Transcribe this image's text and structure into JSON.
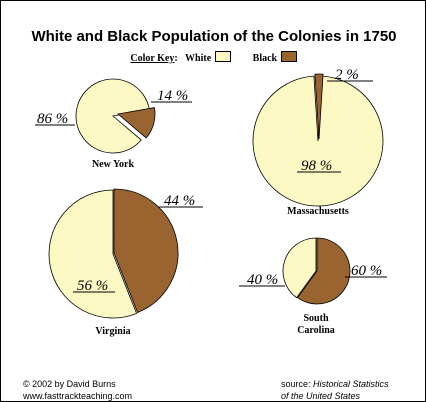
{
  "chart_data": {
    "type": "pie",
    "title": "White and Black Population of the Colonies in 1750",
    "legend": {
      "label": "Color Key",
      "items": [
        {
          "name": "White",
          "color": "#fbf8c4"
        },
        {
          "name": "Black",
          "color": "#9a6431"
        }
      ]
    },
    "charts": [
      {
        "name": "New York",
        "white": 86,
        "black": 14,
        "white_label": "86 %",
        "black_label": "14 %"
      },
      {
        "name": "Massachusetts",
        "white": 98,
        "black": 2,
        "white_label": "98 %",
        "black_label": "2 %"
      },
      {
        "name": "Virginia",
        "white": 56,
        "black": 44,
        "white_label": "56 %",
        "black_label": "44 %"
      },
      {
        "name": "South Carolina",
        "white": 40,
        "black": 60,
        "white_label": "40 %",
        "black_label": "60 %"
      }
    ]
  },
  "footer": {
    "copyright": "© 2002 by David Burns",
    "website": "www.fasttrackteaching.com",
    "source_prefix": "source:",
    "source_line1": "Historical Statistics",
    "source_line2": "of the United States"
  }
}
